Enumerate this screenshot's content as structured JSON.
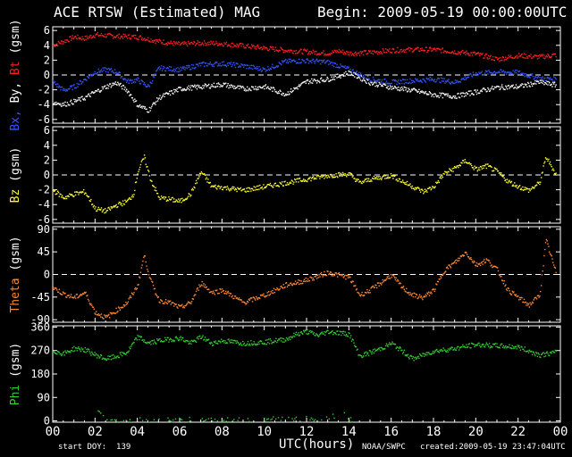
{
  "header": {
    "title": "ACE RTSW (Estimated) MAG",
    "begin": "Begin: 2009-05-19 00:00:00UTC"
  },
  "footer": {
    "start_doy": "start DOY:  139",
    "x_label": "UTC(hours)",
    "source": "NOAA/SWPC",
    "created": "created:2009-05-19 23:47:04UTC"
  },
  "colors": {
    "background": "#000000",
    "frame": "#ffffff",
    "bx": "#3355ff",
    "by": "#ffffff",
    "bt": "#ff2020",
    "bz": "#ffff33",
    "theta": "#ff8833",
    "phi": "#33cc33"
  },
  "chart_data": [
    {
      "type": "scatter",
      "ylabel_parts": [
        {
          "text": "Bx,",
          "color": "#3355ff"
        },
        {
          "text": " By,",
          "color": "#ffffff"
        },
        {
          "text": " Bt",
          "color": "#ff2020"
        },
        {
          "text": " (gsm)",
          "color": "#ffffff"
        }
      ],
      "ylim": [
        -6.5,
        6.5
      ],
      "yticks": [
        "6",
        "4",
        "2",
        "0",
        "-2",
        "-4",
        "-6"
      ],
      "ytick_values": [
        6,
        4,
        2,
        0,
        -2,
        -4,
        -6
      ],
      "zero_line": 0,
      "series": [
        {
          "name": "Bt",
          "color": "#ff2020",
          "x": [
            0,
            0.5,
            1,
            1.5,
            2,
            3,
            4,
            5,
            6,
            7,
            8,
            9,
            10,
            11,
            12,
            13,
            13.5,
            14,
            15,
            16,
            17,
            18,
            19,
            20,
            21,
            22,
            23,
            23.8
          ],
          "y": [
            4.1,
            4.6,
            5.2,
            5.0,
            5.5,
            5.3,
            5.2,
            4.6,
            4.2,
            4.4,
            4.3,
            4.0,
            3.7,
            3.4,
            3.2,
            3.0,
            3.3,
            3.0,
            3.1,
            3.4,
            3.5,
            3.5,
            3.2,
            2.9,
            2.2,
            2.7,
            2.5,
            2.8
          ]
        },
        {
          "name": "Bx",
          "color": "#3355ff",
          "x": [
            0,
            0.5,
            1,
            1.5,
            2,
            2.5,
            3,
            3.5,
            4,
            4.5,
            5,
            6,
            7,
            8,
            9,
            10,
            11,
            12,
            13,
            14,
            15,
            16,
            17,
            18,
            19,
            20,
            21,
            22,
            23,
            23.8
          ],
          "y": [
            -0.9,
            -2.0,
            -1.5,
            -0.5,
            0.5,
            0.8,
            0.5,
            -0.8,
            -0.6,
            -1.5,
            1.0,
            0.8,
            1.5,
            1.6,
            1.3,
            0.8,
            1.9,
            2.0,
            1.8,
            0.8,
            -0.5,
            -0.9,
            -0.7,
            -0.5,
            -0.9,
            0.3,
            0.5,
            0.4,
            -0.4,
            -0.5
          ]
        },
        {
          "name": "By",
          "color": "#ffffff",
          "x": [
            0,
            0.5,
            1,
            1.5,
            2,
            2.5,
            3,
            3.5,
            4,
            4.5,
            5,
            6,
            7,
            8,
            9,
            10,
            11,
            12,
            13,
            14,
            15,
            16,
            17,
            18,
            19,
            20,
            21,
            22,
            23,
            23.8
          ],
          "y": [
            -3.6,
            -3.9,
            -3.5,
            -3.0,
            -2.2,
            -1.5,
            -1.0,
            -2.0,
            -4.0,
            -4.7,
            -3.0,
            -1.8,
            -1.5,
            -1.2,
            -1.8,
            -1.5,
            -2.5,
            -0.8,
            -0.5,
            0.4,
            -1.0,
            -1.6,
            -2.0,
            -2.6,
            -2.8,
            -2.2,
            -1.6,
            -1.5,
            -0.9,
            -1.3
          ]
        }
      ]
    },
    {
      "type": "scatter",
      "ylabel_parts": [
        {
          "text": "Bz",
          "color": "#ffff33"
        },
        {
          "text": "  (gsm)",
          "color": "#ffffff"
        }
      ],
      "ylim": [
        -6.5,
        6.5
      ],
      "yticks": [
        "6",
        "4",
        "2",
        "0",
        "-2",
        "-4",
        "-6"
      ],
      "ytick_values": [
        6,
        4,
        2,
        0,
        -2,
        -4,
        -6
      ],
      "zero_line": 0,
      "series": [
        {
          "name": "Bz",
          "color": "#ffff33",
          "x": [
            0,
            0.5,
            1,
            1.5,
            2,
            2.5,
            3,
            3.5,
            3.8,
            4,
            4.3,
            4.6,
            5,
            5.5,
            6,
            6.5,
            7,
            7.5,
            8,
            9,
            10,
            11,
            12,
            13,
            14,
            14.5,
            15,
            16,
            16.5,
            17,
            17.5,
            18,
            18.5,
            19,
            19.5,
            20,
            20.5,
            21,
            21.5,
            22,
            22.5,
            23,
            23.3,
            23.8
          ],
          "y": [
            -2.0,
            -3.0,
            -2.5,
            -2.2,
            -4.5,
            -4.8,
            -4.0,
            -3.5,
            -2.5,
            0.5,
            2.5,
            -0.5,
            -3.0,
            -3.2,
            -3.5,
            -2.5,
            0.5,
            -1.5,
            -1.6,
            -2.0,
            -1.5,
            -1.0,
            -0.5,
            0.0,
            0.2,
            -1.0,
            -0.5,
            0.0,
            -0.8,
            -1.5,
            -2.2,
            -1.5,
            0.3,
            1.0,
            2.0,
            0.8,
            1.3,
            0.5,
            -0.8,
            -1.5,
            -2.0,
            -1.0,
            2.5,
            0.0
          ]
        }
      ]
    },
    {
      "type": "scatter",
      "ylabel_parts": [
        {
          "text": "Theta",
          "color": "#ff8833"
        },
        {
          "text": "  (gsm)",
          "color": "#ffffff"
        }
      ],
      "ylim": [
        -95,
        95
      ],
      "yticks": [
        "90",
        "45",
        "0",
        "-45",
        "-90"
      ],
      "ytick_values": [
        90,
        45,
        0,
        -45,
        -90
      ],
      "zero_line": 0,
      "series": [
        {
          "name": "Theta",
          "color": "#ff8833",
          "x": [
            0,
            0.5,
            1,
            1.5,
            2,
            2.5,
            3,
            3.5,
            4,
            4.3,
            4.6,
            5,
            5.5,
            6,
            6.5,
            7,
            7.5,
            8,
            9,
            10,
            11,
            12,
            13,
            14,
            14.5,
            15,
            15.5,
            16,
            16.5,
            17,
            17.5,
            18,
            18.5,
            19,
            19.5,
            20,
            20.5,
            21,
            21.5,
            22,
            22.5,
            23,
            23.3,
            23.8
          ],
          "y": [
            -25,
            -38,
            -45,
            -35,
            -75,
            -85,
            -70,
            -55,
            -20,
            40,
            -10,
            -50,
            -55,
            -65,
            -55,
            -15,
            -35,
            -30,
            -55,
            -40,
            -20,
            -10,
            5,
            -5,
            -40,
            -30,
            -15,
            0,
            -25,
            -40,
            -45,
            -30,
            10,
            25,
            45,
            20,
            30,
            10,
            -30,
            -45,
            -60,
            -40,
            70,
            0
          ]
        }
      ]
    },
    {
      "type": "scatter",
      "ylabel_parts": [
        {
          "text": "Phi",
          "color": "#33cc33"
        },
        {
          "text": "  (gsm)",
          "color": "#ffffff"
        }
      ],
      "ylim": [
        -5,
        365
      ],
      "yticks": [
        "360",
        "270",
        "180",
        "90",
        "0"
      ],
      "ytick_values": [
        360,
        270,
        180,
        90,
        0
      ],
      "zero_line": null,
      "series": [
        {
          "name": "Phi",
          "color": "#33cc33",
          "x": [
            0,
            0.5,
            1,
            1.5,
            2,
            2.5,
            3,
            3.5,
            4,
            4.5,
            5,
            6,
            6.5,
            7,
            7.5,
            8,
            9,
            10,
            11,
            11.5,
            12,
            12.5,
            13,
            14,
            14.5,
            15,
            15.5,
            16,
            16.5,
            17,
            18,
            19,
            20,
            21,
            22,
            23,
            23.8
          ],
          "y": [
            270,
            260,
            280,
            275,
            255,
            240,
            250,
            265,
            325,
            300,
            310,
            320,
            300,
            325,
            300,
            310,
            300,
            305,
            315,
            335,
            345,
            330,
            345,
            335,
            250,
            265,
            280,
            300,
            270,
            240,
            270,
            280,
            295,
            290,
            285,
            255,
            265
          ]
        },
        {
          "name": "Phi",
          "color": "#33cc33",
          "x": [
            2.0,
            2.2,
            2.4,
            2.6,
            3.0,
            12.2,
            12.5,
            13.8,
            14.0,
            14.2
          ],
          "y": [
            60,
            40,
            20,
            10,
            5,
            10,
            5,
            30,
            10,
            5
          ]
        }
      ]
    }
  ],
  "x_axis": {
    "range": [
      0,
      24
    ],
    "ticks": [
      "00",
      "02",
      "04",
      "06",
      "08",
      "10",
      "12",
      "14",
      "16",
      "18",
      "20",
      "22",
      "00"
    ],
    "tick_values": [
      0,
      2,
      4,
      6,
      8,
      10,
      12,
      14,
      16,
      18,
      20,
      22,
      24
    ]
  }
}
